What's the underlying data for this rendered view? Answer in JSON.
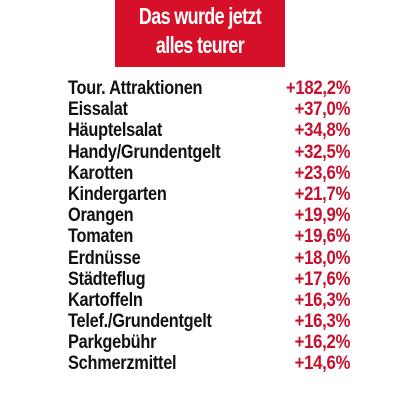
{
  "banner": {
    "line1": "Das wurde jetzt",
    "line2": "alles teurer",
    "color": "#d7102a"
  },
  "items": [
    {
      "label": "Tour. Attraktionen",
      "value": "+182,2%"
    },
    {
      "label": "Eissalat",
      "value": "+37,0%"
    },
    {
      "label": "Häuptelsalat",
      "value": "+34,8%"
    },
    {
      "label": "Handy/Grundentgelt",
      "value": "+32,5%"
    },
    {
      "label": "Karotten",
      "value": "+23,6%"
    },
    {
      "label": "Kindergarten",
      "value": "+21,7%"
    },
    {
      "label": "Orangen",
      "value": "+19,9%"
    },
    {
      "label": "Tomaten",
      "value": "+19,6%"
    },
    {
      "label": "Erdnüsse",
      "value": "+18,0%"
    },
    {
      "label": "Städteflug",
      "value": "+17,6%"
    },
    {
      "label": "Kartoffeln",
      "value": "+16,3%"
    },
    {
      "label": "Telef./Grundentgelt",
      "value": "+16,3%"
    },
    {
      "label": "Parkgebühr",
      "value": "+16,2%"
    },
    {
      "label": "Schmerzmittel",
      "value": "+14,6%"
    }
  ],
  "value_color": "#c8102e",
  "label_color": "#111111"
}
